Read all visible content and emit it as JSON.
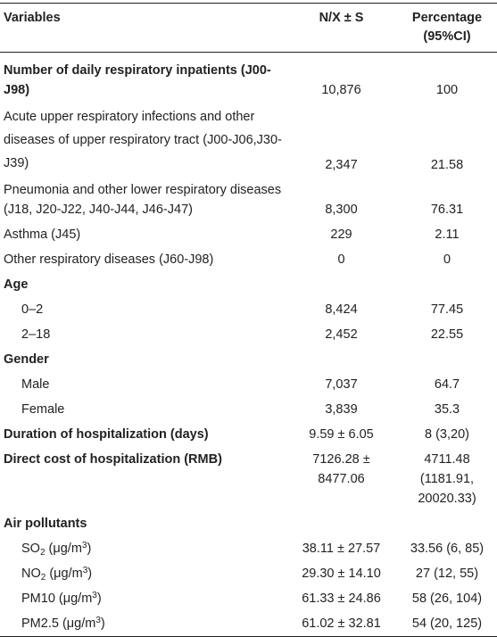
{
  "header": {
    "col1": "Variables",
    "col2": "N/X ± S",
    "col3_line1": "Percentage",
    "col3_line2": "(95%CI)"
  },
  "rows": [
    {
      "label": "Number of daily respiratory inpatients (J00-J98)",
      "n": "10,876",
      "pct": "100"
    },
    {
      "label": "Acute upper respiratory infections and other diseases of upper respiratory tract (J00-J06,J30-J39)",
      "n": "2,347",
      "pct": "21.58"
    },
    {
      "label": "Pneumonia and other lower respiratory diseases (J18, J20-J22, J40-J44, J46-J47)",
      "n": "8,300",
      "pct": "76.31"
    },
    {
      "label": "Asthma (J45)",
      "n": "229",
      "pct": "2.11"
    },
    {
      "label": "Other respiratory diseases (J60-J98)",
      "n": "0",
      "pct": "0"
    },
    {
      "label": "Age",
      "n": "",
      "pct": ""
    },
    {
      "label": "0–2",
      "n": "8,424",
      "pct": "77.45"
    },
    {
      "label": "2–18",
      "n": "2,452",
      "pct": "22.55"
    },
    {
      "label": "Gender",
      "n": "",
      "pct": ""
    },
    {
      "label": "Male",
      "n": "7,037",
      "pct": "64.7"
    },
    {
      "label": "Female",
      "n": "3,839",
      "pct": "35.3"
    },
    {
      "label": "Duration of hospitalization (days)",
      "n": "9.59 ± 6.05",
      "pct": "8 (3,20)"
    },
    {
      "label": "Direct cost of hospitalization (RMB)",
      "n": "7126.28 ± 8477.06",
      "pct": "4711.48 (1181.91, 20020.33)"
    },
    {
      "label": "Air pollutants",
      "n": "",
      "pct": ""
    },
    {
      "name": "SO",
      "sub": "2",
      "unit_pre": " (μg/m",
      "unit_sup": "3",
      "unit_post": ")",
      "n": "38.11 ± 27.57",
      "pct": "33.56 (6, 85)"
    },
    {
      "name": "NO",
      "sub": "2",
      "unit_pre": " (μg/m",
      "unit_sup": "3",
      "unit_post": ")",
      "n": "29.30 ± 14.10",
      "pct": "27 (12, 55)"
    },
    {
      "name": "PM10",
      "sub": "",
      "unit_pre": " (μg/m",
      "unit_sup": "3",
      "unit_post": ")",
      "n": "61.33 ± 24.86",
      "pct": "58 (26, 104)"
    },
    {
      "name": "PM2.5",
      "sub": "",
      "unit_pre": " (μg/m",
      "unit_sup": "3",
      "unit_post": ")",
      "n": "61.02 ± 32.81",
      "pct": "54 (20, 125)"
    }
  ]
}
